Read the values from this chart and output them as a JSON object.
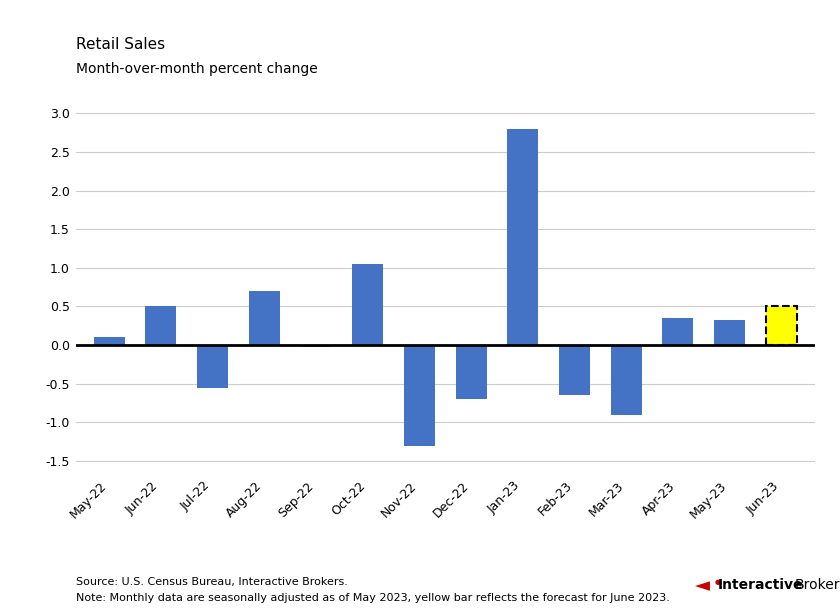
{
  "categories": [
    "May-22",
    "Jun-22",
    "Jul-22",
    "Aug-22",
    "Sep-22",
    "Oct-22",
    "Nov-22",
    "Dec-22",
    "Jan-23",
    "Feb-23",
    "Mar-23",
    "Apr-23",
    "May-23",
    "Jun-23"
  ],
  "values": [
    0.1,
    0.5,
    -0.55,
    0.7,
    -0.02,
    1.05,
    -1.3,
    -0.7,
    2.8,
    -0.65,
    -0.9,
    0.35,
    0.32,
    0.5
  ],
  "bar_colors": [
    "#4472C4",
    "#4472C4",
    "#4472C4",
    "#4472C4",
    "#4472C4",
    "#4472C4",
    "#4472C4",
    "#4472C4",
    "#4472C4",
    "#4472C4",
    "#4472C4",
    "#4472C4",
    "#4472C4",
    "#FFFF00"
  ],
  "forecast_index": 13,
  "title_line1": "Retail Sales",
  "title_line2": "Month-over-month percent change",
  "ylim": [
    -1.7,
    3.2
  ],
  "yticks": [
    -1.5,
    -1.0,
    -0.5,
    0.0,
    0.5,
    1.0,
    1.5,
    2.0,
    2.5,
    3.0
  ],
  "source_text": "Source: U.S. Census Bureau, Interactive Brokers.",
  "note_text": "Note: Monthly data are seasonally adjusted as of May 2023, yellow bar reflects the forecast for June 2023.",
  "background_color": "#FFFFFF",
  "grid_color": "#CCCCCC",
  "zero_line_color": "#000000",
  "title_fontsize": 11,
  "axis_label_fontsize": 9,
  "footer_fontsize": 8,
  "ib_bold": "Interactive",
  "ib_normal": "Brokers"
}
